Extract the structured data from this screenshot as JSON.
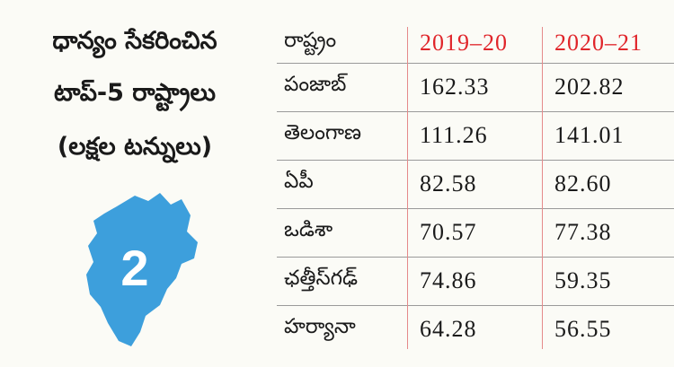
{
  "header": {
    "title_lines": [
      "ధాన్యం సేకరించిన",
      "టాప్-5 రాష్ట్రాలు",
      "(లక్షల టన్నులు)"
    ]
  },
  "badge": {
    "label": "2"
  },
  "table": {
    "columns": [
      "రాష్ట్రం",
      "2019–20",
      "2020–21"
    ],
    "rows": [
      [
        "పంజాబ్",
        "162.33",
        "202.82"
      ],
      [
        "తెలంగాణ",
        "111.26",
        "141.01"
      ],
      [
        "ఏపీ",
        "82.58",
        "82.60"
      ],
      [
        "ఒడిశా",
        "70.57",
        "77.38"
      ],
      [
        "ఛత్తీస్‌గఢ్",
        "74.86",
        "59.35"
      ],
      [
        "హర్యానా",
        "64.28",
        "56.55"
      ]
    ]
  }
}
